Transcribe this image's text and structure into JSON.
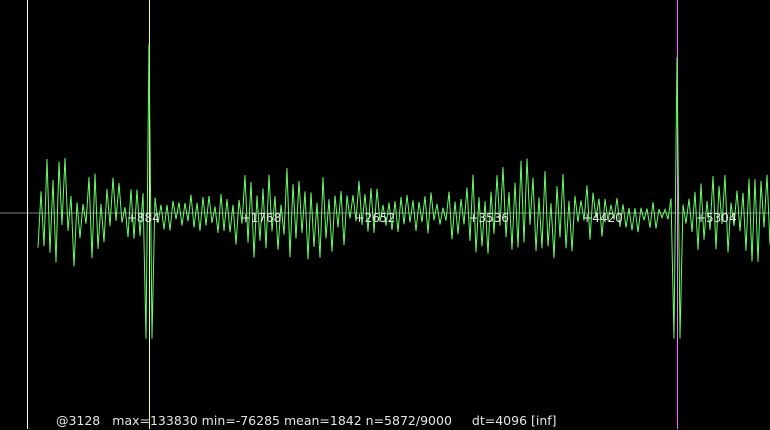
{
  "colors": {
    "background": "#000000",
    "waveform": "#66ff66",
    "axis": "#808080",
    "left_marker": "#ffffff",
    "cursor_marker": "#f0ff88",
    "right_marker": "#ff66ff",
    "text": "#e6e6e6"
  },
  "status": {
    "position": "@3128",
    "stats": "max=133830 min=-76285 mean=1842 n=5872/9000",
    "dt": "dt=4096 [inf]"
  },
  "chart_data": {
    "type": "line",
    "x_ticks": [
      {
        "value": 884,
        "label": "+884"
      },
      {
        "value": 1768,
        "label": "+1768"
      },
      {
        "value": 2652,
        "label": "+2652"
      },
      {
        "value": 3536,
        "label": "+3536"
      },
      {
        "value": 4420,
        "label": "+4420"
      },
      {
        "value": 5304,
        "label": "+5304"
      }
    ],
    "xlim": [
      -210,
      5770
    ],
    "ylim": [
      -150000,
      150000
    ],
    "markers": [
      {
        "name": "left-marker",
        "x": 0,
        "color": "#ffffff"
      },
      {
        "name": "cursor-marker",
        "x": 950,
        "color": "#f0ff88"
      },
      {
        "name": "right-marker",
        "x": 5050,
        "color": "#ff66ff"
      }
    ],
    "max": 133830,
    "min": -76285,
    "mean": 1842
  }
}
